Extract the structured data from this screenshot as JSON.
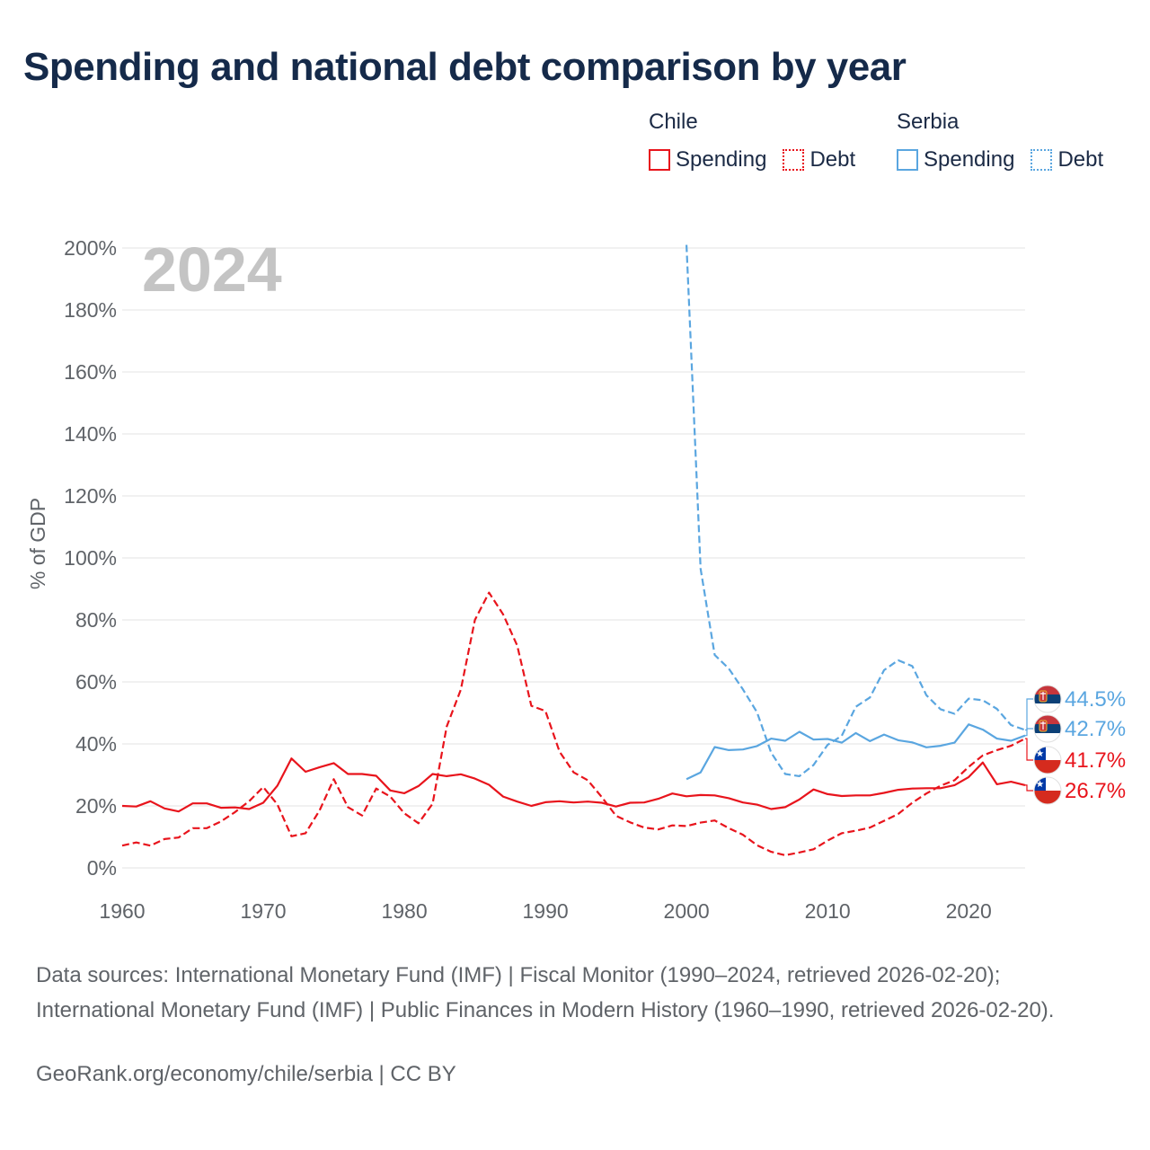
{
  "title": "Spending and national debt comparison by year",
  "legend": {
    "countries": [
      {
        "name": "Chile",
        "color": "#e8141c",
        "items": [
          "Spending",
          "Debt"
        ]
      },
      {
        "name": "Serbia",
        "color": "#5aa6e0",
        "items": [
          "Spending",
          "Debt"
        ]
      }
    ]
  },
  "year_label": "2024",
  "footer": {
    "sources": "Data sources: International Monetary Fund (IMF) | Fiscal Monitor (1990–2024, retrieved 2026-02-20); International Monetary Fund (IMF) | Public Finances in Modern History (1960–1990, retrieved 2026-02-20).",
    "credit": "GeoRank.org/economy/chile/serbia | CC BY"
  },
  "chart_data": {
    "type": "line",
    "ylabel": "% of GDP",
    "xlabel": "",
    "xlim": [
      1960,
      2024
    ],
    "ylim": [
      0,
      200
    ],
    "xticks": [
      1960,
      1970,
      1980,
      1990,
      2000,
      2010,
      2020
    ],
    "yticks": [
      0,
      20,
      40,
      60,
      80,
      100,
      120,
      140,
      160,
      180,
      200
    ],
    "ytick_labels": [
      "0%",
      "20%",
      "40%",
      "60%",
      "80%",
      "100%",
      "120%",
      "140%",
      "160%",
      "180%",
      "200%"
    ],
    "grid": true,
    "series": [
      {
        "name": "Chile Spending",
        "country": "Chile",
        "metric": "Spending",
        "style": "solid",
        "color": "#e8141c",
        "x": [
          1960,
          1961,
          1962,
          1963,
          1964,
          1965,
          1966,
          1967,
          1968,
          1969,
          1970,
          1971,
          1972,
          1973,
          1974,
          1975,
          1976,
          1977,
          1978,
          1979,
          1980,
          1981,
          1982,
          1983,
          1984,
          1985,
          1986,
          1987,
          1988,
          1989,
          1990,
          1991,
          1992,
          1993,
          1994,
          1995,
          1996,
          1997,
          1998,
          1999,
          2000,
          2001,
          2002,
          2003,
          2004,
          2005,
          2006,
          2007,
          2008,
          2009,
          2010,
          2011,
          2012,
          2013,
          2014,
          2015,
          2016,
          2017,
          2018,
          2019,
          2020,
          2021,
          2022,
          2023,
          2024
        ],
        "values": [
          20,
          19.8,
          21.5,
          19.2,
          18.2,
          20.8,
          20.8,
          19.4,
          19.5,
          19,
          21,
          26.5,
          35.3,
          31,
          32.5,
          33.8,
          30.3,
          30.3,
          29.7,
          25,
          24.1,
          26.4,
          30.3,
          29.6,
          30.2,
          28.8,
          26.8,
          23,
          21.4,
          20,
          21.2,
          21.5,
          21.1,
          21.4,
          21,
          19.8,
          21,
          21.1,
          22.3,
          24,
          23.1,
          23.5,
          23.4,
          22.5,
          21.1,
          20.4,
          19,
          19.6,
          22.1,
          25.3,
          23.8,
          23.2,
          23.4,
          23.4,
          24.2,
          25.2,
          25.6,
          25.7,
          25.7,
          26.7,
          29.3,
          34,
          27,
          27.8,
          26.7
        ]
      },
      {
        "name": "Chile Debt",
        "country": "Chile",
        "metric": "Debt",
        "style": "dashed",
        "color": "#e8141c",
        "x": [
          1960,
          1961,
          1962,
          1963,
          1964,
          1965,
          1966,
          1967,
          1968,
          1969,
          1970,
          1971,
          1972,
          1973,
          1974,
          1975,
          1976,
          1977,
          1978,
          1979,
          1980,
          1981,
          1982,
          1983,
          1984,
          1985,
          1986,
          1987,
          1988,
          1989,
          1990,
          1991,
          1992,
          1993,
          1994,
          1995,
          1996,
          1997,
          1998,
          1999,
          2000,
          2001,
          2002,
          2003,
          2004,
          2005,
          2006,
          2007,
          2008,
          2009,
          2010,
          2011,
          2012,
          2013,
          2014,
          2015,
          2016,
          2017,
          2018,
          2019,
          2020,
          2021,
          2022,
          2023,
          2024
        ],
        "values": [
          7.2,
          8.2,
          7.2,
          9.3,
          9.8,
          12.8,
          12.8,
          15,
          18,
          21.5,
          26.1,
          20.5,
          10.2,
          11.2,
          18.6,
          28.6,
          19.6,
          16.9,
          25.6,
          23,
          17.6,
          14.4,
          20.7,
          45.6,
          57.5,
          80,
          88.8,
          81.8,
          71.7,
          52.3,
          50.6,
          37.5,
          30.8,
          28.3,
          22.8,
          16.8,
          14.7,
          13,
          12.4,
          13.7,
          13.5,
          14.6,
          15.3,
          12.8,
          10.7,
          7.3,
          5.2,
          4.1,
          5,
          6.0,
          8.8,
          11.2,
          12,
          13,
          15.2,
          17.4,
          21,
          24,
          26.5,
          28.3,
          32.6,
          36.3,
          38,
          39.4,
          41.7
        ]
      },
      {
        "name": "Serbia Spending",
        "country": "Serbia",
        "metric": "Spending",
        "style": "solid",
        "color": "#5aa6e0",
        "x": [
          2000,
          2001,
          2002,
          2003,
          2004,
          2005,
          2006,
          2007,
          2008,
          2009,
          2010,
          2011,
          2012,
          2013,
          2014,
          2015,
          2016,
          2017,
          2018,
          2019,
          2020,
          2021,
          2022,
          2023,
          2024
        ],
        "values": [
          28.6,
          30.8,
          39,
          38,
          38.2,
          39.3,
          41.7,
          41,
          43.9,
          41.4,
          41.6,
          40.4,
          43.5,
          40.9,
          43,
          41.2,
          40.5,
          38.9,
          39.4,
          40.4,
          46.3,
          44.6,
          41.7,
          41,
          42.7
        ]
      },
      {
        "name": "Serbia Debt",
        "country": "Serbia",
        "metric": "Debt",
        "style": "dashed",
        "color": "#5aa6e0",
        "x": [
          2000,
          2001,
          2002,
          2003,
          2004,
          2005,
          2006,
          2007,
          2008,
          2009,
          2010,
          2011,
          2012,
          2013,
          2014,
          2015,
          2016,
          2017,
          2018,
          2019,
          2020,
          2021,
          2022,
          2023,
          2024
        ],
        "values": [
          201,
          96.5,
          68.7,
          64.3,
          57.6,
          50.2,
          37.2,
          30.3,
          29.6,
          33.2,
          39.7,
          42.6,
          52,
          55,
          63.8,
          67,
          65.1,
          55.7,
          51.2,
          49.7,
          54.6,
          54.1,
          51.3,
          46.1,
          44.5
        ]
      }
    ],
    "end_labels": [
      {
        "series": "Serbia Debt",
        "value": 44.5,
        "label": "44.5%",
        "flag": "serbia"
      },
      {
        "series": "Serbia Spending",
        "value": 42.7,
        "label": "42.7%",
        "flag": "serbia"
      },
      {
        "series": "Chile Debt",
        "value": 41.7,
        "label": "41.7%",
        "flag": "chile"
      },
      {
        "series": "Chile Spending",
        "value": 26.7,
        "label": "26.7%",
        "flag": "chile"
      }
    ]
  }
}
